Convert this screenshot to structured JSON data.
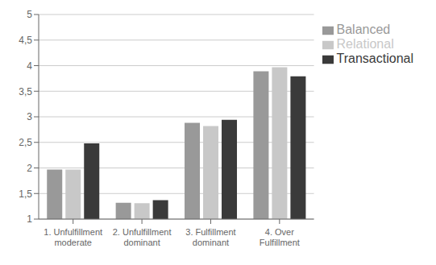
{
  "chart_data": {
    "type": "bar",
    "categories": [
      "1. Unfulfillment\nmoderate",
      "2. Unfulfillment\ndominant",
      "3. Fulfillment\ndominant",
      "4. Over\nFulfillment"
    ],
    "series": [
      {
        "name": "Balanced",
        "color": "#999999",
        "values": [
          1.97,
          1.32,
          2.88,
          3.89
        ]
      },
      {
        "name": "Relational",
        "color": "#c8c8c8",
        "values": [
          1.97,
          1.31,
          2.82,
          3.97
        ]
      },
      {
        "name": "Transactional",
        "color": "#3a3a3a",
        "values": [
          2.48,
          1.37,
          2.94,
          3.79
        ]
      }
    ],
    "ylim": [
      1,
      5
    ],
    "yticks": [
      1,
      {
        "value": 1.5,
        "label": "1,5"
      },
      2,
      {
        "value": 2.5,
        "label": "2,5"
      },
      3,
      {
        "value": 3.5,
        "label": "3,5"
      },
      4,
      {
        "value": 4.5,
        "label": "4,5"
      },
      5
    ],
    "grid": true,
    "legend": "right"
  }
}
